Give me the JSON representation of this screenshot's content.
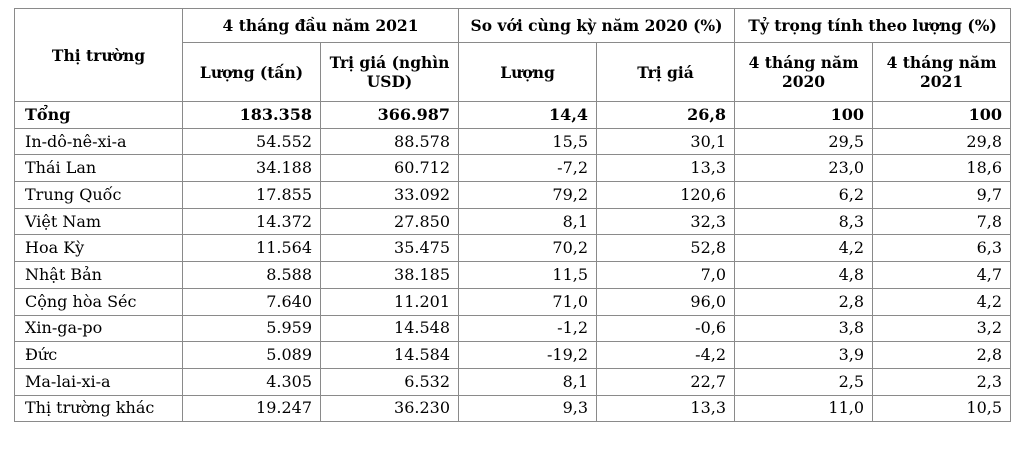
{
  "table": {
    "headers": {
      "market": "Thị trường",
      "group_4m2021": "4 tháng đầu năm 2021",
      "group_yoy": "So với cùng kỳ năm 2020 (%)",
      "group_share": "Tỷ trọng tính theo lượng (%)",
      "qty": "Lượng (tấn)",
      "value": "Trị giá (nghìn USD)",
      "yoy_qty": "Lượng",
      "yoy_value": "Trị giá",
      "share_2020": "4 tháng năm 2020",
      "share_2021": "4 tháng năm 2021"
    },
    "rows": [
      {
        "market": "Tổng",
        "qty": "183.358",
        "value": "366.987",
        "yoy_qty": "14,4",
        "yoy_value": "26,8",
        "share_2020": "100",
        "share_2021": "100"
      },
      {
        "market": "In-dô-nê-xi-a",
        "qty": "54.552",
        "value": "88.578",
        "yoy_qty": "15,5",
        "yoy_value": "30,1",
        "share_2020": "29,5",
        "share_2021": "29,8"
      },
      {
        "market": "Thái Lan",
        "qty": "34.188",
        "value": "60.712",
        "yoy_qty": "-7,2",
        "yoy_value": "13,3",
        "share_2020": "23,0",
        "share_2021": "18,6"
      },
      {
        "market": "Trung Quốc",
        "qty": "17.855",
        "value": "33.092",
        "yoy_qty": "79,2",
        "yoy_value": "120,6",
        "share_2020": "6,2",
        "share_2021": "9,7"
      },
      {
        "market": "Việt Nam",
        "qty": "14.372",
        "value": "27.850",
        "yoy_qty": "8,1",
        "yoy_value": "32,3",
        "share_2020": "8,3",
        "share_2021": "7,8"
      },
      {
        "market": "Hoa Kỳ",
        "qty": "11.564",
        "value": "35.475",
        "yoy_qty": "70,2",
        "yoy_value": "52,8",
        "share_2020": "4,2",
        "share_2021": "6,3"
      },
      {
        "market": "Nhật Bản",
        "qty": "8.588",
        "value": "38.185",
        "yoy_qty": "11,5",
        "yoy_value": "7,0",
        "share_2020": "4,8",
        "share_2021": "4,7"
      },
      {
        "market": "Cộng hòa Séc",
        "qty": "7.640",
        "value": "11.201",
        "yoy_qty": "71,0",
        "yoy_value": "96,0",
        "share_2020": "2,8",
        "share_2021": "4,2"
      },
      {
        "market": "Xin-ga-po",
        "qty": "5.959",
        "value": "14.548",
        "yoy_qty": "-1,2",
        "yoy_value": "-0,6",
        "share_2020": "3,8",
        "share_2021": "3,2"
      },
      {
        "market": "Đức",
        "qty": "5.089",
        "value": "14.584",
        "yoy_qty": "-19,2",
        "yoy_value": "-4,2",
        "share_2020": "3,9",
        "share_2021": "2,8"
      },
      {
        "market": "Ma-lai-xi-a",
        "qty": "4.305",
        "value": "6.532",
        "yoy_qty": "8,1",
        "yoy_value": "22,7",
        "share_2020": "2,5",
        "share_2021": "2,3"
      },
      {
        "market": "Thị trường khác",
        "qty": "19.247",
        "value": "36.230",
        "yoy_qty": "9,3",
        "yoy_value": "13,3",
        "share_2020": "11,0",
        "share_2021": "10,5"
      }
    ]
  }
}
